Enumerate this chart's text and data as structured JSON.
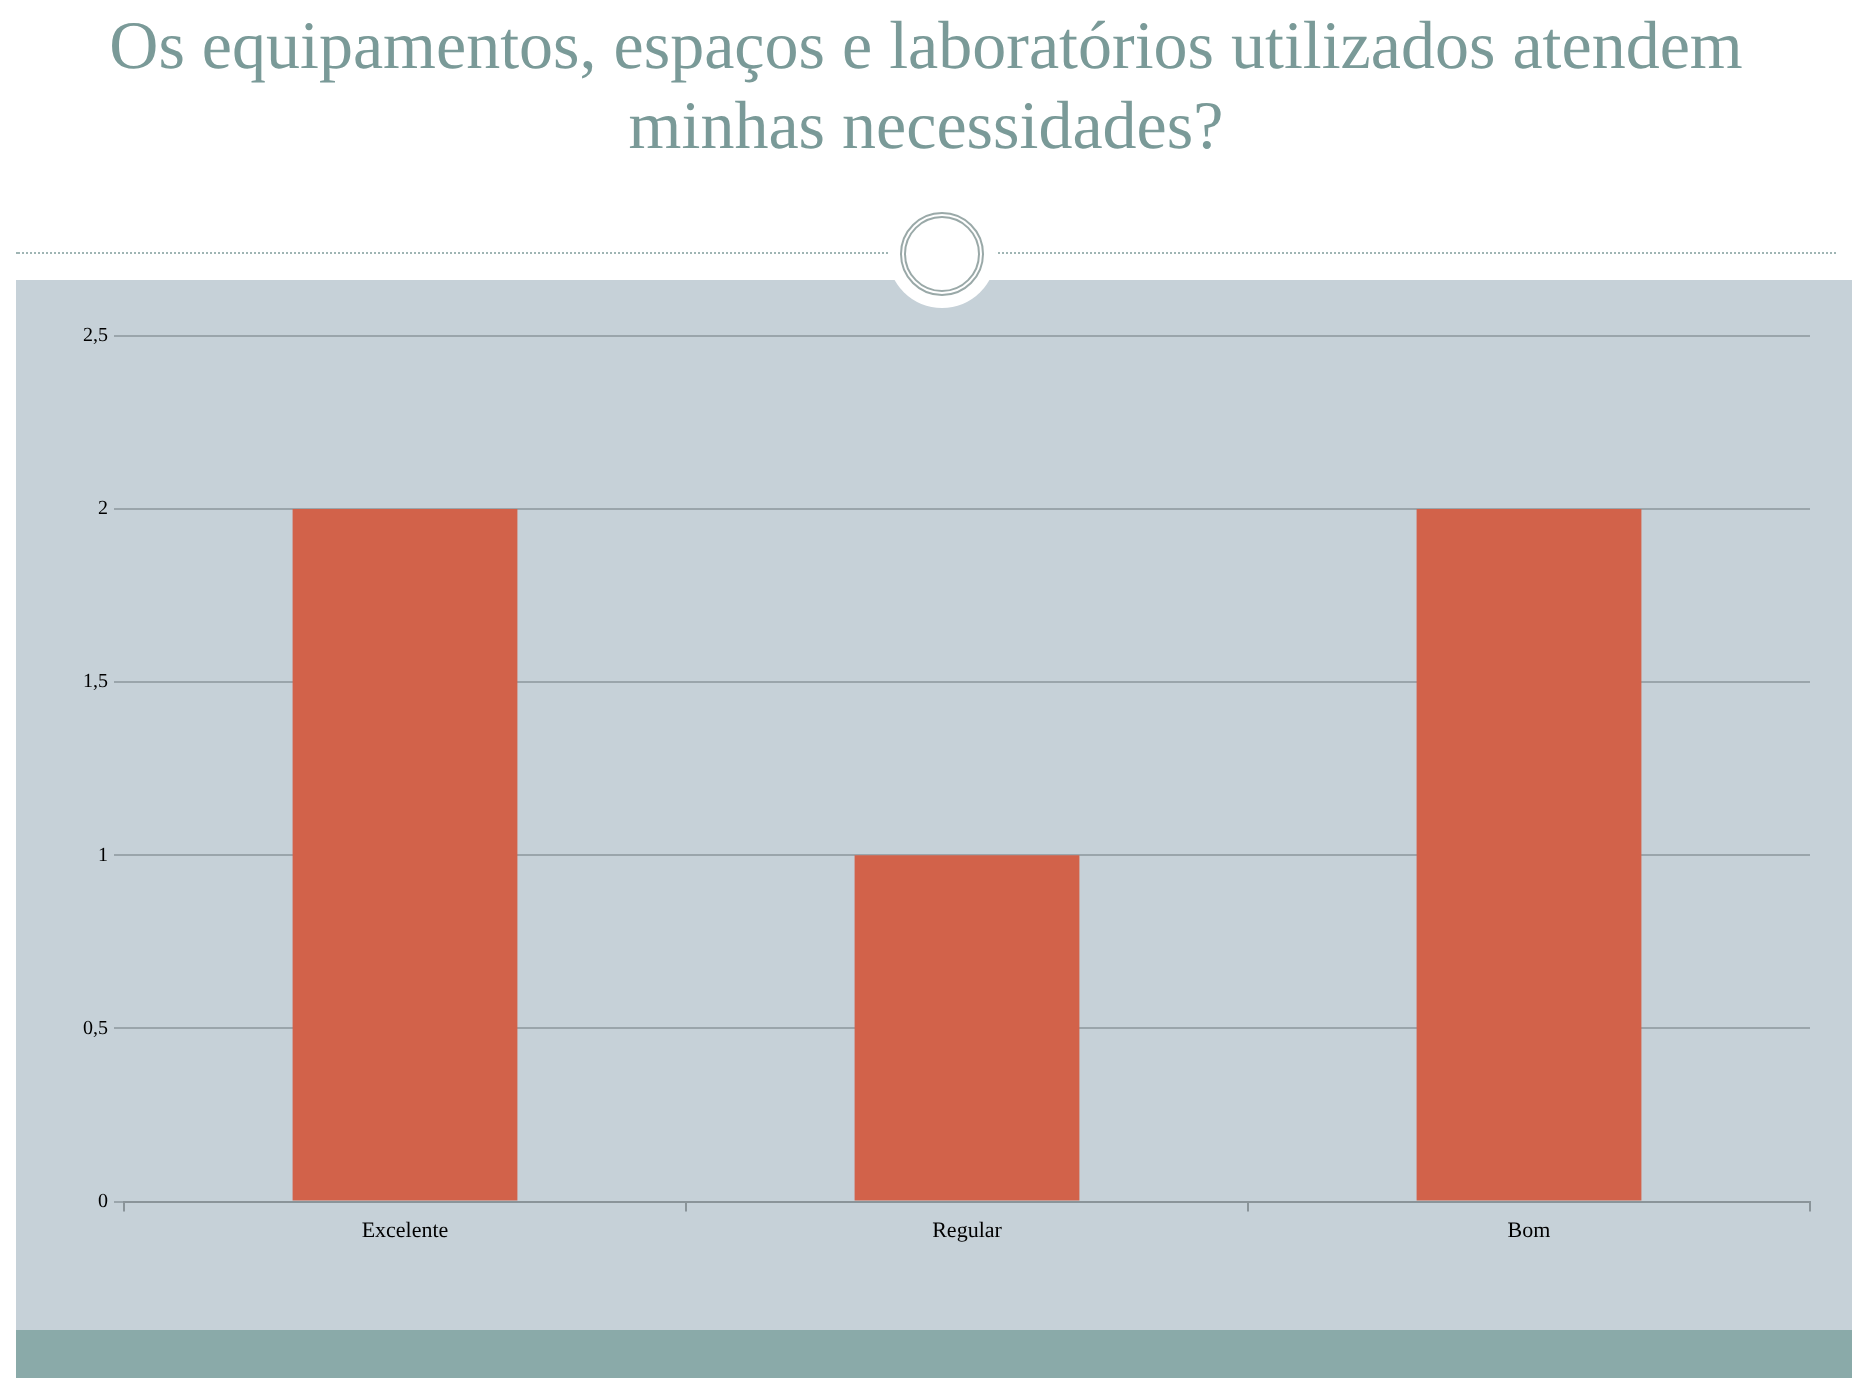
{
  "chart_data": {
    "type": "bar",
    "title": "Os equipamentos, espaços e laboratórios utilizados atendem minhas necessidades?",
    "categories": [
      "Excelente",
      "Regular",
      "Bom"
    ],
    "values": [
      2,
      1,
      2
    ],
    "color": "#d2624a",
    "ylim": [
      0,
      2.5
    ],
    "yticks": [
      0,
      {
        "value": 0.5,
        "label": "0,5"
      },
      1,
      {
        "value": 1.5,
        "label": "1,5"
      },
      2,
      {
        "value": 2.5,
        "label": "2,5"
      }
    ],
    "grid": "y"
  }
}
